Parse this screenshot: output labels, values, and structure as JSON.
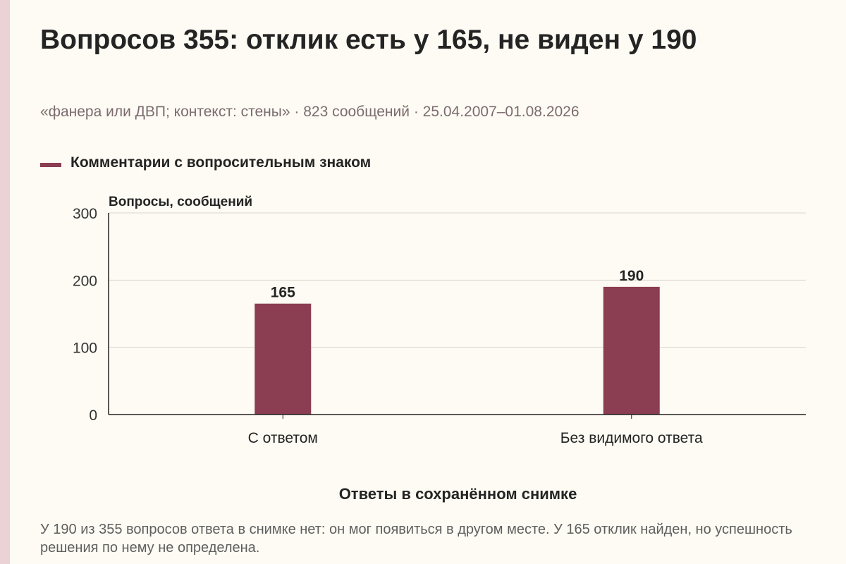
{
  "title": "Вопросов 355: отклик есть у 165, не виден у 190",
  "subtitle": "«фанера или ДВП; контекст: стены» · 823 сообщений · 25.04.2007–01.08.2026",
  "note": "У 190 из 355 вопросов ответа в снимке нет: он мог появиться в другом месте. У 165 отклик найден, но успешность решения по нему не определена.",
  "colors": {
    "bar": "#8b3d52",
    "grid": "#d9d6cf",
    "axis": "#222222"
  },
  "chart_data": {
    "type": "bar",
    "title": "Вопросов 355: отклик есть у 165, не виден у 190",
    "xlabel": "Ответы в сохранённом снимке",
    "ylabel": "Вопросы, сообщений",
    "categories": [
      "С ответом",
      "Без видимого ответа"
    ],
    "series": [
      {
        "name": "Комментарии с вопросительным знаком",
        "values": [
          165,
          190
        ]
      }
    ],
    "ylim": [
      0,
      300
    ],
    "yticks": [
      0,
      100,
      200,
      300
    ],
    "data_labels": [
      "165",
      "190"
    ],
    "grid": true,
    "legend_position": "top-left"
  }
}
